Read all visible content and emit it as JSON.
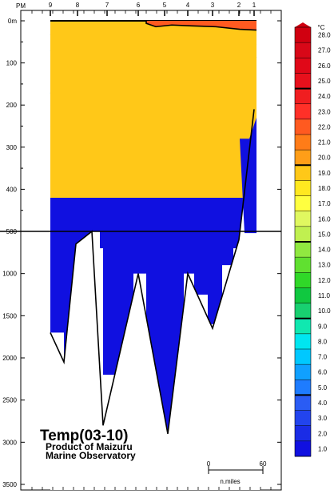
{
  "chart_data": {
    "type": "heatmap",
    "title": "Temp(03-10)",
    "subtitle_lines": [
      "Product of Maizuru",
      "Marine Observatory"
    ],
    "x_unit_label": "PM",
    "x_station_labels": [
      "9",
      "8",
      "7",
      "6",
      "5",
      "4",
      "3",
      "2",
      "1"
    ],
    "y_tick_labels": [
      "0m",
      "100",
      "200",
      "300",
      "400",
      "500",
      "1000",
      "1500",
      "2000",
      "2500",
      "3000",
      "3500"
    ],
    "y_axis_segments": [
      {
        "range_m": [
          0,
          500
        ],
        "note": "upper 0-500 m"
      },
      {
        "range_m": [
          500,
          3500
        ],
        "note": "lower 500-3500 m"
      }
    ],
    "colorbar": {
      "unit": "°C",
      "levels": [
        1.0,
        2.0,
        3.0,
        4.0,
        5.0,
        6.0,
        7.0,
        8.0,
        9.0,
        10.0,
        11.0,
        12.0,
        13.0,
        14.0,
        15.0,
        16.0,
        17.0,
        18.0,
        19.0,
        20.0,
        21.0,
        22.0,
        23.0,
        24.0,
        25.0,
        26.0,
        27.0,
        28.0
      ],
      "labels": [
        "1.0",
        "2.0",
        "3.0",
        "4.0",
        "5.0",
        "6.0",
        "7.0",
        "8.0",
        "9.0",
        "10.0",
        "11.0",
        "12.0",
        "13.0",
        "14.0",
        "15.0",
        "16.0",
        "17.0",
        "18.0",
        "19.0",
        "20.0",
        "21.0",
        "22.0",
        "23.0",
        "24.0",
        "25.0",
        "26.0",
        "27.0",
        "28.0"
      ],
      "colors": [
        "#1010e0",
        "#1a2ce6",
        "#2244ee",
        "#2a5cf4",
        "#1e7cff",
        "#10a0ff",
        "#00c8ff",
        "#00e6f0",
        "#10e8b0",
        "#18d070",
        "#10c840",
        "#30d828",
        "#60e030",
        "#90e840",
        "#c0f050",
        "#e0f860",
        "#ffff40",
        "#ffe820",
        "#ffc818",
        "#ff9e18",
        "#ff7c18",
        "#ff5a20",
        "#ff3028",
        "#f01e20",
        "#e8101c",
        "#e00818",
        "#d80818",
        "#d00010"
      ],
      "bold_contours": [
        5.0,
        10.0,
        15.0,
        20.0,
        25.0
      ]
    },
    "surface_temp_range": [
      19.0,
      23.0
    ],
    "bottom_depth_profile_m": [
      {
        "station": "9",
        "depth": 1700
      },
      {
        "station": "8",
        "depth": 2050
      },
      {
        "station": "8",
        "depth": 650
      },
      {
        "station": "7",
        "depth": 500
      },
      {
        "station": "7",
        "depth": 2800
      },
      {
        "station": "6",
        "depth": 1000
      },
      {
        "station": "5",
        "depth": 2900
      },
      {
        "station": "4",
        "depth": 1000
      },
      {
        "station": "3",
        "depth": 1650
      },
      {
        "station": "2",
        "depth": 600
      },
      {
        "station": "1",
        "depth": 210
      }
    ],
    "scale_bar": {
      "left": "0",
      "right": "60",
      "unit": "n.miles"
    }
  }
}
